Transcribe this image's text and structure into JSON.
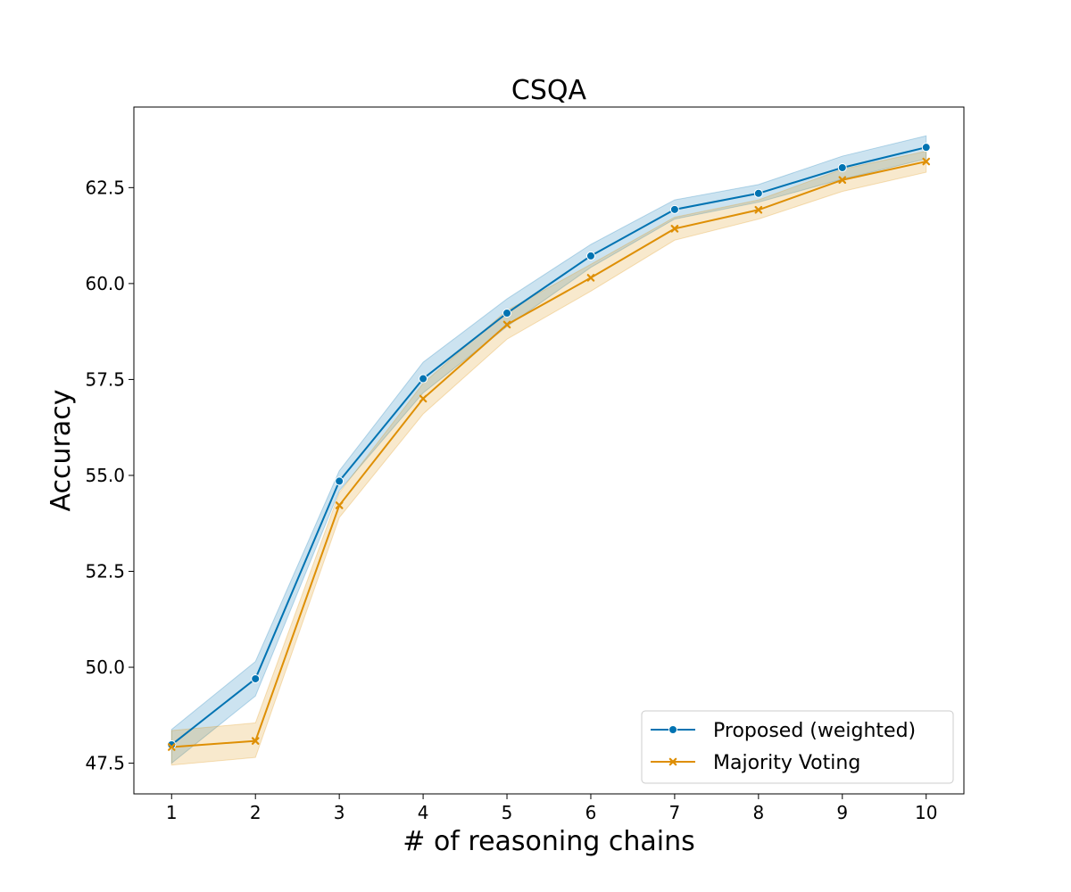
{
  "chart_data": {
    "type": "line",
    "title": "CSQA",
    "xlabel": "# of reasoning chains",
    "ylabel": "Accuracy",
    "x": [
      1,
      2,
      3,
      4,
      5,
      6,
      7,
      8,
      9,
      10
    ],
    "xlim": [
      0.55,
      10.45
    ],
    "ylim": [
      46.7,
      64.6
    ],
    "xticks": [
      "1",
      "2",
      "3",
      "4",
      "5",
      "6",
      "7",
      "8",
      "9",
      "10"
    ],
    "yticks": [
      {
        "value": 47.5,
        "label": "47.5"
      },
      {
        "value": 50.0,
        "label": "50.0"
      },
      {
        "value": 52.5,
        "label": "52.5"
      },
      {
        "value": 55.0,
        "label": "55.0"
      },
      {
        "value": 57.5,
        "label": "57.5"
      },
      {
        "value": 60.0,
        "label": "60.0"
      },
      {
        "value": 62.5,
        "label": "62.5"
      }
    ],
    "grid": false,
    "legend_position": "lower-right",
    "series": [
      {
        "name": "Proposed (weighted)",
        "color": "#0173b2",
        "marker": "circle",
        "values": [
          47.98,
          49.7,
          54.85,
          57.52,
          59.23,
          60.72,
          61.93,
          62.35,
          63.02,
          63.55
        ],
        "ci_low": [
          47.5,
          49.25,
          54.6,
          57.15,
          58.88,
          60.42,
          61.68,
          62.12,
          62.72,
          63.25
        ],
        "ci_high": [
          48.38,
          50.15,
          55.12,
          57.95,
          59.6,
          61.02,
          62.18,
          62.58,
          63.32,
          63.85
        ]
      },
      {
        "name": "Majority Voting",
        "color": "#de8f05",
        "marker": "x",
        "values": [
          47.92,
          48.08,
          54.22,
          57.0,
          58.93,
          60.15,
          61.43,
          61.92,
          62.7,
          63.18
        ],
        "ci_low": [
          47.45,
          47.65,
          53.9,
          56.6,
          58.55,
          59.8,
          61.13,
          61.68,
          62.4,
          62.9
        ],
        "ci_high": [
          48.35,
          48.55,
          54.55,
          57.4,
          59.3,
          60.5,
          61.73,
          62.18,
          62.98,
          63.45
        ]
      }
    ]
  }
}
